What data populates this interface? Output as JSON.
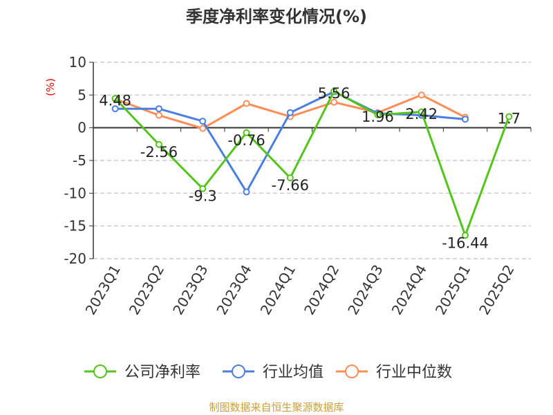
{
  "chart_data": {
    "type": "line",
    "title": "季度净利率变化情况(%)",
    "ylabel": "(%)",
    "xlabel": "",
    "ylim": [
      -20,
      10
    ],
    "yticks": [
      10,
      5,
      0,
      -5,
      -10,
      -15,
      -20
    ],
    "grid": true,
    "legend_position": "bottom",
    "categories": [
      "2023Q1",
      "2023Q2",
      "2023Q3",
      "2023Q4",
      "2024Q1",
      "2024Q2",
      "2024Q3",
      "2024Q4",
      "2025Q1",
      "2025Q2"
    ],
    "series": [
      {
        "name": "公司净利率",
        "color": "#52c41a",
        "labeled": true,
        "values": [
          4.48,
          -2.56,
          -9.3,
          -0.76,
          -7.66,
          5.56,
          1.96,
          2.42,
          -16.44,
          1.7
        ]
      },
      {
        "name": "行业均值",
        "color": "#4a7ee0",
        "labeled": false,
        "values": [
          2.9,
          2.9,
          1.0,
          -9.8,
          2.3,
          5.5,
          2.2,
          1.9,
          1.3,
          null
        ]
      },
      {
        "name": "行业中位数",
        "color": "#ff8c55",
        "labeled": false,
        "values": [
          4.4,
          1.9,
          -0.1,
          3.7,
          1.7,
          3.9,
          2.3,
          5.0,
          1.6,
          null
        ]
      }
    ]
  },
  "footer": "制图数据来自恒生聚源数据库"
}
